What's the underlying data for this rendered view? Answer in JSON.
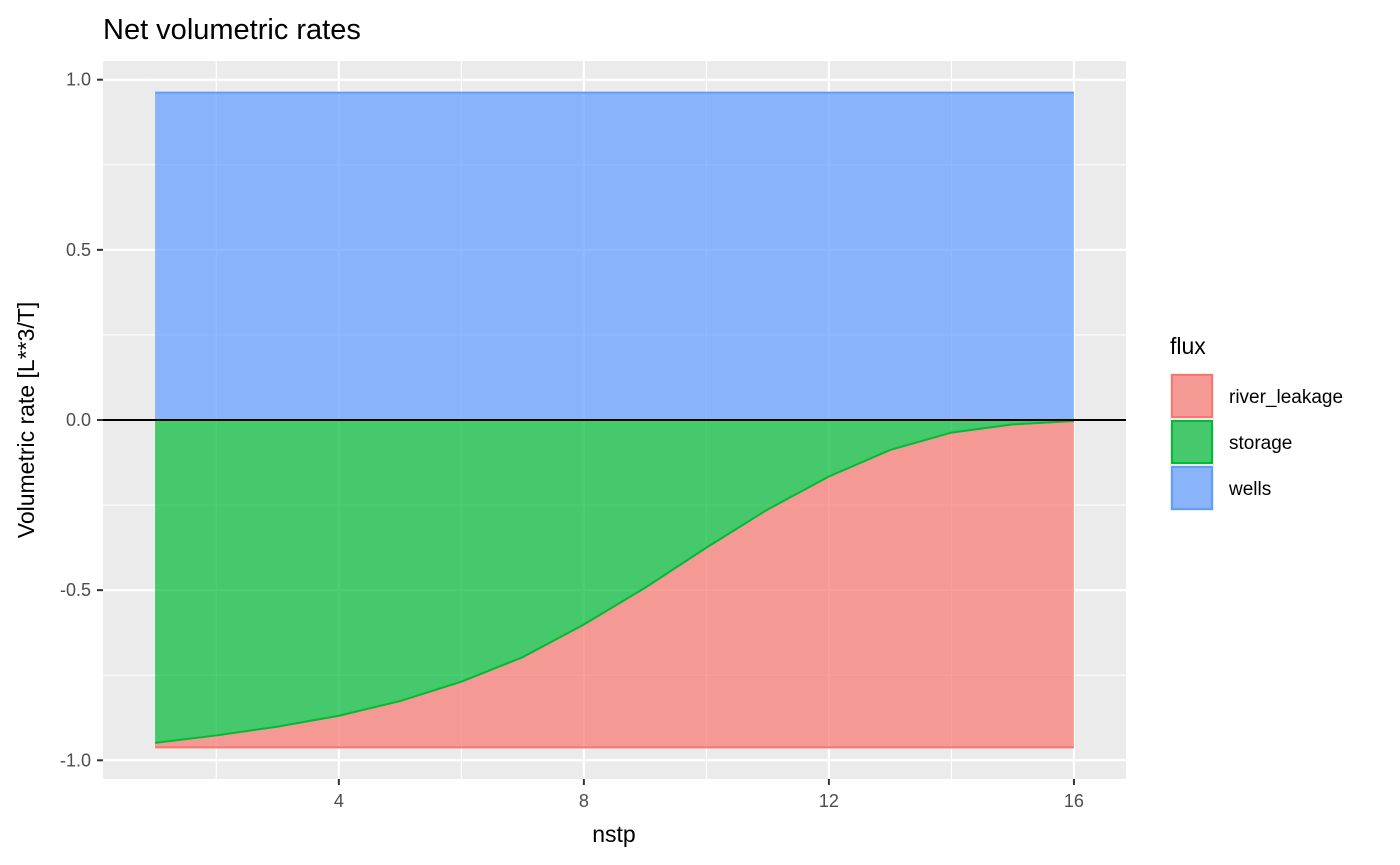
{
  "chart_data": {
    "type": "area",
    "title": "Net volumetric rates",
    "xlabel": "nstp",
    "ylabel": "Volumetric rate [L**3/T]",
    "x": [
      1,
      2,
      3,
      4,
      5,
      6,
      7,
      8,
      9,
      10,
      11,
      12,
      13,
      14,
      15,
      16
    ],
    "x_ticks": [
      4,
      8,
      12,
      16
    ],
    "x_tick_labels": [
      "4",
      "8",
      "12",
      "16"
    ],
    "y_ticks": [
      -1.0,
      -0.5,
      0.0,
      0.5,
      1.0
    ],
    "y_tick_labels": [
      "-1.0",
      "-0.5",
      "0.0",
      "0.5",
      "1.0"
    ],
    "xlim": [
      0.15,
      16.85
    ],
    "ylim": [
      -1.055,
      1.055
    ],
    "grid": true,
    "reference_line_y": 0,
    "legend": {
      "title": "flux",
      "placement": "right",
      "entries": [
        "river_leakage",
        "storage",
        "wells"
      ]
    },
    "colors": {
      "river_leakage": "#F8766D",
      "storage": "#00BA38",
      "wells": "#619CFF"
    },
    "series": [
      {
        "name": "river_leakage",
        "values": [
          -0.013,
          -0.035,
          -0.061,
          -0.093,
          -0.136,
          -0.193,
          -0.265,
          -0.361,
          -0.469,
          -0.587,
          -0.699,
          -0.796,
          -0.874,
          -0.925,
          -0.949,
          -0.959
        ]
      },
      {
        "name": "storage",
        "values": [
          -0.949,
          -0.927,
          -0.901,
          -0.869,
          -0.826,
          -0.769,
          -0.697,
          -0.601,
          -0.493,
          -0.375,
          -0.263,
          -0.166,
          -0.088,
          -0.037,
          -0.013,
          -0.003
        ]
      },
      {
        "name": "wells",
        "values": [
          0.962,
          0.962,
          0.962,
          0.962,
          0.962,
          0.962,
          0.962,
          0.962,
          0.962,
          0.962,
          0.962,
          0.962,
          0.962,
          0.962,
          0.962,
          0.962
        ]
      }
    ]
  }
}
